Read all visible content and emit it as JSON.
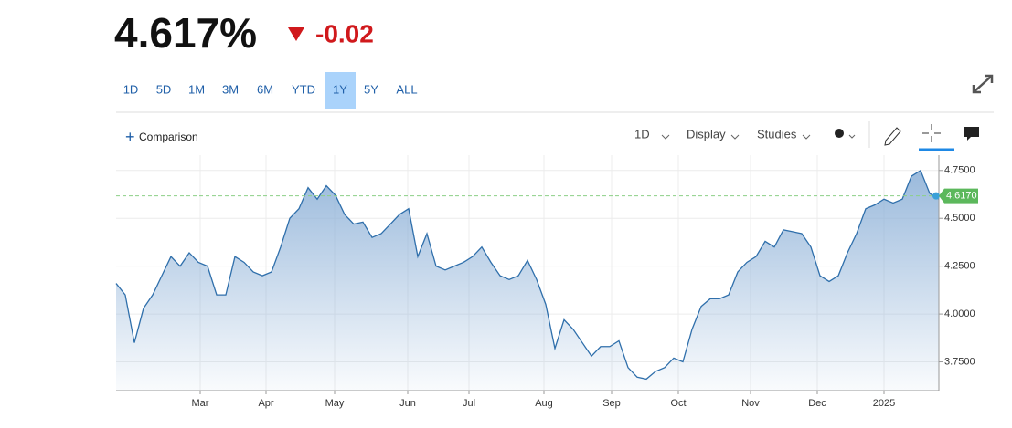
{
  "header": {
    "price": "4.617%",
    "change": "-0.02"
  },
  "ranges": [
    "1D",
    "5D",
    "1M",
    "3M",
    "6M",
    "YTD",
    "1Y",
    "5Y",
    "ALL"
  ],
  "active_range": "1Y",
  "toolbar": {
    "comparison": "Comparison",
    "interval": "1D",
    "display": "Display",
    "studies": "Studies"
  },
  "chart_data": {
    "type": "area",
    "color": "#2f6fab",
    "grid": true,
    "values": [
      4.16,
      4.1,
      3.85,
      4.03,
      4.1,
      4.2,
      4.3,
      4.25,
      4.32,
      4.27,
      4.25,
      4.1,
      4.1,
      4.3,
      4.27,
      4.22,
      4.2,
      4.22,
      4.35,
      4.5,
      4.55,
      4.66,
      4.6,
      4.67,
      4.62,
      4.52,
      4.47,
      4.48,
      4.4,
      4.42,
      4.47,
      4.52,
      4.55,
      4.3,
      4.42,
      4.25,
      4.23,
      4.25,
      4.27,
      4.3,
      4.35,
      4.27,
      4.2,
      4.18,
      4.2,
      4.28,
      4.18,
      4.05,
      3.82,
      3.97,
      3.92,
      3.85,
      3.78,
      3.83,
      3.83,
      3.86,
      3.72,
      3.67,
      3.66,
      3.7,
      3.72,
      3.77,
      3.75,
      3.92,
      4.04,
      4.08,
      4.08,
      4.1,
      4.22,
      4.27,
      4.3,
      4.38,
      4.35,
      4.44,
      4.43,
      4.42,
      4.35,
      4.2,
      4.17,
      4.2,
      4.32,
      4.42,
      4.55,
      4.57,
      4.6,
      4.58,
      4.6,
      4.72,
      4.75,
      4.63,
      4.6
    ],
    "xlim": [
      0,
      90
    ],
    "xticks": [
      {
        "value": 9.2,
        "label": "Mar"
      },
      {
        "value": 16.4,
        "label": "Apr"
      },
      {
        "value": 23.9,
        "label": "May"
      },
      {
        "value": 31.9,
        "label": "Jun"
      },
      {
        "value": 38.6,
        "label": "Jul"
      },
      {
        "value": 46.8,
        "label": "Aug"
      },
      {
        "value": 54.2,
        "label": "Sep"
      },
      {
        "value": 61.5,
        "label": "Oct"
      },
      {
        "value": 69.4,
        "label": "Nov"
      },
      {
        "value": 76.7,
        "label": "Dec"
      },
      {
        "value": 84,
        "label": "2025"
      }
    ],
    "ylim": [
      3.6,
      4.83
    ],
    "yticks": [
      {
        "value": 3.75,
        "label": "3.7500"
      },
      {
        "value": 4,
        "label": "4.0000"
      },
      {
        "value": 4.25,
        "label": "4.2500"
      },
      {
        "value": 4.5,
        "label": "4.5000"
      },
      {
        "value": 4.75,
        "label": "4.7500"
      }
    ],
    "last_value": {
      "value": 4.617,
      "label": "4.6170"
    }
  }
}
